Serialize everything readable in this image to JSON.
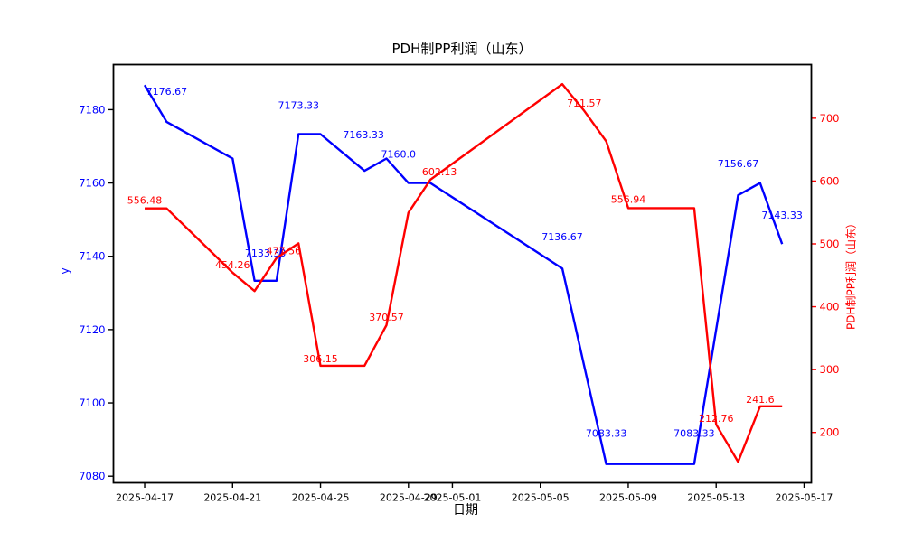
{
  "figure": {
    "title": "PDH制PP利润（山东）",
    "xlabel": "日期",
    "ylabel_left": "y",
    "ylabel_right": "PDH制PP利润（山东）"
  },
  "chart_data": {
    "type": "line",
    "title": "PDH制PP利润（山东）",
    "xlabel": "日期",
    "grid": false,
    "legend": "none",
    "x_origin_date": "2025-04-17",
    "x_range_days": [
      -1.42,
      30.33
    ],
    "x_tick_dates": [
      "2025-04-17",
      "2025-04-21",
      "2025-04-25",
      "2025-04-29",
      "2025-05-01",
      "2025-05-05",
      "2025-05-09",
      "2025-05-13",
      "2025-05-17"
    ],
    "axes": {
      "left": {
        "label": "y",
        "color": "#0000ff",
        "ticks": [
          7080,
          7100,
          7120,
          7140,
          7160,
          7180
        ],
        "range": [
          7078.2,
          7192.3
        ]
      },
      "right": {
        "label": "PDH制PP利润（山东）",
        "color": "#ff0000",
        "ticks": [
          200,
          300,
          400,
          500,
          600,
          700
        ],
        "range": [
          119.8,
          785.3
        ]
      }
    },
    "series": [
      {
        "name": "y",
        "axis": "left",
        "color": "#0000ff",
        "points": [
          {
            "date": "2025-04-17",
            "value": 7186.67
          },
          {
            "date": "2025-04-18",
            "value": 7176.67,
            "label": "7176.67",
            "ldx": 0,
            "ldy": -30
          },
          {
            "date": "2025-04-21",
            "value": 7166.67
          },
          {
            "date": "2025-04-22",
            "value": 7133.33,
            "label": "7133.33",
            "ldx": 12,
            "ldy": -27
          },
          {
            "date": "2025-04-23",
            "value": 7133.33
          },
          {
            "date": "2025-04-24",
            "value": 7173.33,
            "label": "7173.33",
            "ldx": 0,
            "ldy": -28
          },
          {
            "date": "2025-04-25",
            "value": 7173.33
          },
          {
            "date": "2025-04-27",
            "value": 7163.33,
            "label": "7163.33",
            "ldx": -1,
            "ldy": -36
          },
          {
            "date": "2025-04-28",
            "value": 7166.67
          },
          {
            "date": "2025-04-29",
            "value": 7160.0,
            "label": "7160.0",
            "ldx": -11,
            "ldy": -28
          },
          {
            "date": "2025-04-30",
            "value": 7160.0
          },
          {
            "date": "2025-05-06",
            "value": 7136.67,
            "label": "7136.67",
            "ldx": 0,
            "ldy": -31
          },
          {
            "date": "2025-05-08",
            "value": 7083.33,
            "label": "7083.33",
            "ldx": 0,
            "ldy": -30
          },
          {
            "date": "2025-05-12",
            "value": 7083.33,
            "label": "7083.33",
            "ldx": 0,
            "ldy": -30
          },
          {
            "date": "2025-05-14",
            "value": 7156.67,
            "label": "7156.67",
            "ldx": 0,
            "ldy": -31
          },
          {
            "date": "2025-05-15",
            "value": 7160.0
          },
          {
            "date": "2025-05-16",
            "value": 7143.33,
            "label": "7143.33",
            "ldx": 0,
            "ldy": -28
          }
        ]
      },
      {
        "name": "PDH制PP利润（山东）",
        "axis": "right",
        "color": "#ff0000",
        "points": [
          {
            "date": "2025-04-17",
            "value": 556.48,
            "label": "556.48",
            "ldx": 0,
            "ldy": -5
          },
          {
            "date": "2025-04-18",
            "value": 556.48
          },
          {
            "date": "2025-04-21",
            "value": 454.26,
            "label": "454.26",
            "ldx": 0,
            "ldy": -5
          },
          {
            "date": "2025-04-22",
            "value": 425.0
          },
          {
            "date": "2025-04-23",
            "value": 477.56,
            "label": "477.56",
            "ldx": 8,
            "ldy": -4
          },
          {
            "date": "2025-04-24",
            "value": 500.9
          },
          {
            "date": "2025-04-25",
            "value": 306.15,
            "label": "306.15",
            "ldx": 0,
            "ldy": -4
          },
          {
            "date": "2025-04-27",
            "value": 306.15
          },
          {
            "date": "2025-04-28",
            "value": 370.57,
            "label": "370.57",
            "ldx": 0,
            "ldy": -5
          },
          {
            "date": "2025-04-29",
            "value": 549.7
          },
          {
            "date": "2025-04-30",
            "value": 602.13,
            "label": "602.13",
            "ldx": 10,
            "ldy": -5
          },
          {
            "date": "2025-05-06",
            "value": 754.2
          },
          {
            "date": "2025-05-07",
            "value": 711.57,
            "label": "711.57",
            "ldx": 0,
            "ldy": -5
          },
          {
            "date": "2025-05-08",
            "value": 663.2
          },
          {
            "date": "2025-05-09",
            "value": 556.94,
            "label": "556.94",
            "ldx": 0,
            "ldy": -6
          },
          {
            "date": "2025-05-12",
            "value": 556.94
          },
          {
            "date": "2025-05-13",
            "value": 212.76,
            "label": "212.76",
            "ldx": 0,
            "ldy": -3
          },
          {
            "date": "2025-05-14",
            "value": 153.2
          },
          {
            "date": "2025-05-15",
            "value": 241.6,
            "label": "241.6",
            "ldx": 0,
            "ldy": -4
          },
          {
            "date": "2025-05-16",
            "value": 241.6
          }
        ]
      }
    ]
  }
}
